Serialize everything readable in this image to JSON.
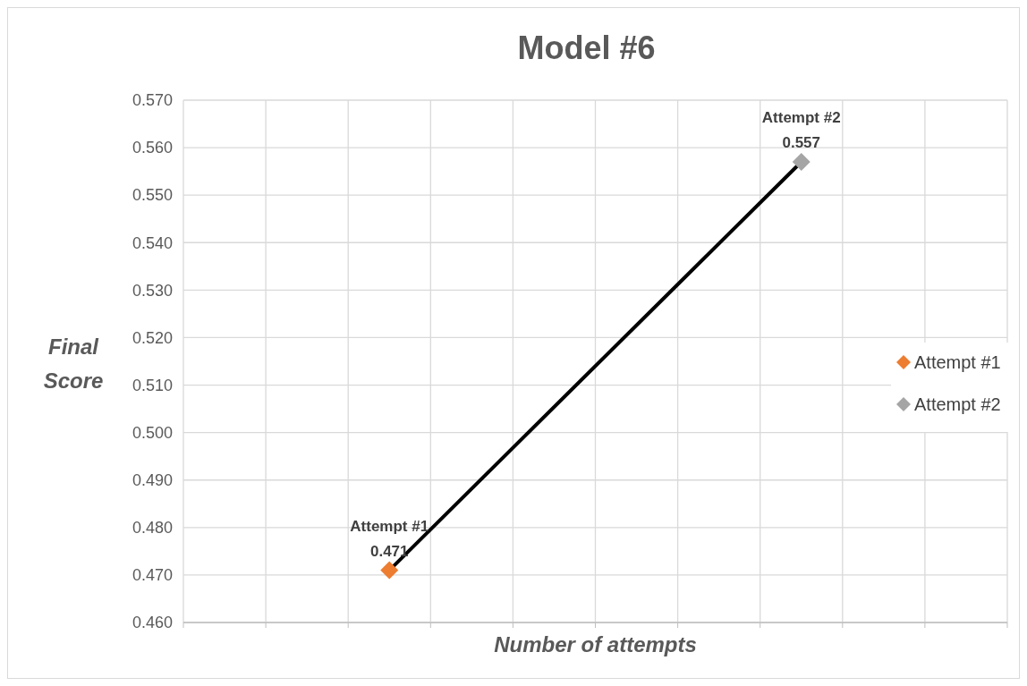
{
  "chart_data": {
    "type": "line",
    "title": "Model #6",
    "xlabel": "Number of attempts",
    "ylabel": "Final Score",
    "categories": [
      null,
      null
    ],
    "ylim": [
      0.46,
      0.57
    ],
    "yticks": [
      {
        "value": 0.46,
        "label": "0.460"
      },
      {
        "value": 0.47,
        "label": "0.470"
      },
      {
        "value": 0.48,
        "label": "0.480"
      },
      {
        "value": 0.49,
        "label": "0.490"
      },
      {
        "value": 0.5,
        "label": "0.500"
      },
      {
        "value": 0.51,
        "label": "0.510"
      },
      {
        "value": 0.52,
        "label": "0.520"
      },
      {
        "value": 0.53,
        "label": "0.530"
      },
      {
        "value": 0.54,
        "label": "0.540"
      },
      {
        "value": 0.55,
        "label": "0.550"
      },
      {
        "value": 0.56,
        "label": "0.560"
      },
      {
        "value": 0.57,
        "label": "0.570"
      }
    ],
    "grid": true,
    "legend": "right",
    "marker": "diamond",
    "series": [
      {
        "color": "#000000",
        "marker": "none",
        "values": [
          0.471,
          0.557
        ]
      },
      {
        "name": "Attempt #1",
        "color": "#ed7d31",
        "values": [
          0.471,
          null
        ],
        "value_labels": [
          "0.471",
          null
        ]
      },
      {
        "name": "Attempt #2",
        "color": "#a5a5a5",
        "values": [
          null,
          0.557
        ],
        "value_labels": [
          null,
          "0.557"
        ]
      }
    ]
  }
}
